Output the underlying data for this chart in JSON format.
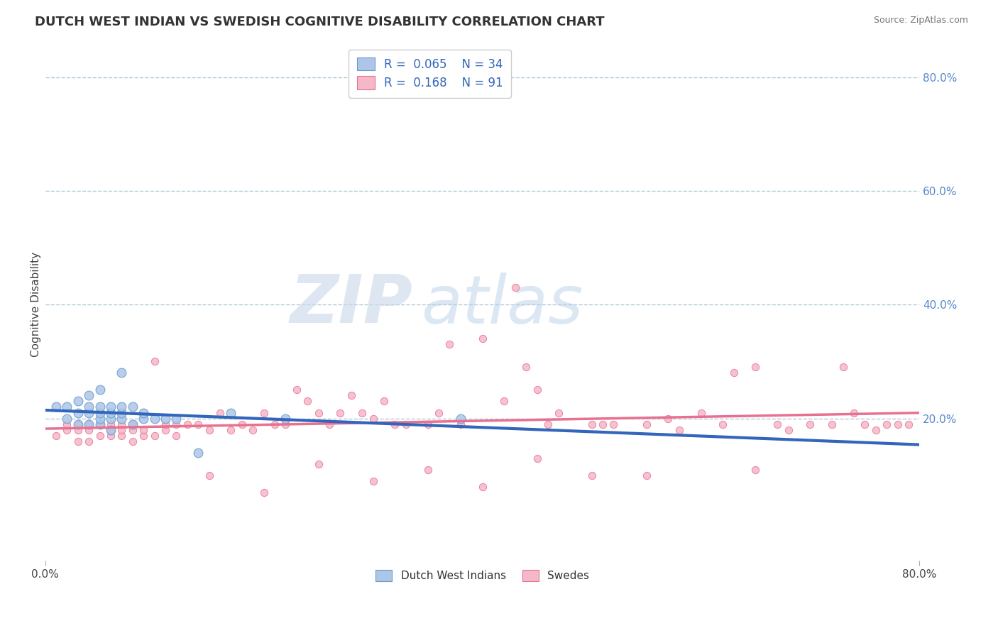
{
  "title": "DUTCH WEST INDIAN VS SWEDISH COGNITIVE DISABILITY CORRELATION CHART",
  "source_text": "Source: ZipAtlas.com",
  "ylabel": "Cognitive Disability",
  "xlim": [
    0.0,
    0.8
  ],
  "ylim": [
    -0.05,
    0.85
  ],
  "ytick_right_labels": [
    "20.0%",
    "40.0%",
    "60.0%",
    "80.0%"
  ],
  "ytick_right_values": [
    0.2,
    0.4,
    0.6,
    0.8
  ],
  "legend_labels": [
    "Dutch West Indians",
    "Swedes"
  ],
  "R1": 0.065,
  "N1": 34,
  "R2": 0.168,
  "N2": 91,
  "color_blue_fill": "#adc6e8",
  "color_blue_edge": "#6699cc",
  "color_pink_fill": "#f5b8c8",
  "color_pink_edge": "#e87090",
  "color_blue_line": "#3366bb",
  "color_pink_line": "#e87090",
  "watermark_zip": "ZIP",
  "watermark_atlas": "atlas",
  "title_fontsize": 13,
  "background_color": "#ffffff",
  "grid_color": "#b0c8d8",
  "blue_x": [
    0.01,
    0.02,
    0.02,
    0.03,
    0.03,
    0.03,
    0.04,
    0.04,
    0.04,
    0.04,
    0.05,
    0.05,
    0.05,
    0.05,
    0.05,
    0.06,
    0.06,
    0.06,
    0.06,
    0.07,
    0.07,
    0.07,
    0.07,
    0.08,
    0.08,
    0.09,
    0.09,
    0.1,
    0.11,
    0.12,
    0.14,
    0.17,
    0.22,
    0.38
  ],
  "blue_y": [
    0.22,
    0.2,
    0.22,
    0.19,
    0.21,
    0.23,
    0.19,
    0.21,
    0.22,
    0.24,
    0.19,
    0.2,
    0.21,
    0.22,
    0.25,
    0.18,
    0.2,
    0.21,
    0.22,
    0.2,
    0.21,
    0.22,
    0.28,
    0.19,
    0.22,
    0.2,
    0.21,
    0.2,
    0.2,
    0.2,
    0.14,
    0.21,
    0.2,
    0.2
  ],
  "pink_x": [
    0.01,
    0.02,
    0.02,
    0.03,
    0.03,
    0.03,
    0.04,
    0.04,
    0.04,
    0.05,
    0.05,
    0.06,
    0.06,
    0.06,
    0.07,
    0.07,
    0.07,
    0.08,
    0.08,
    0.08,
    0.09,
    0.09,
    0.1,
    0.1,
    0.11,
    0.11,
    0.12,
    0.12,
    0.13,
    0.14,
    0.15,
    0.16,
    0.17,
    0.18,
    0.19,
    0.2,
    0.21,
    0.22,
    0.23,
    0.24,
    0.25,
    0.26,
    0.27,
    0.28,
    0.29,
    0.3,
    0.31,
    0.32,
    0.33,
    0.35,
    0.36,
    0.37,
    0.38,
    0.4,
    0.42,
    0.43,
    0.44,
    0.45,
    0.46,
    0.47,
    0.5,
    0.51,
    0.52,
    0.55,
    0.57,
    0.58,
    0.6,
    0.62,
    0.63,
    0.65,
    0.67,
    0.68,
    0.7,
    0.72,
    0.73,
    0.74,
    0.75,
    0.76,
    0.77,
    0.78,
    0.79,
    0.15,
    0.25,
    0.35,
    0.45,
    0.55,
    0.65,
    0.2,
    0.3,
    0.4,
    0.5
  ],
  "pink_y": [
    0.17,
    0.18,
    0.19,
    0.16,
    0.18,
    0.19,
    0.16,
    0.18,
    0.19,
    0.17,
    0.19,
    0.17,
    0.18,
    0.19,
    0.17,
    0.18,
    0.19,
    0.16,
    0.18,
    0.19,
    0.17,
    0.18,
    0.17,
    0.3,
    0.18,
    0.19,
    0.17,
    0.19,
    0.19,
    0.19,
    0.18,
    0.21,
    0.18,
    0.19,
    0.18,
    0.21,
    0.19,
    0.19,
    0.25,
    0.23,
    0.21,
    0.19,
    0.21,
    0.24,
    0.21,
    0.2,
    0.23,
    0.19,
    0.19,
    0.19,
    0.21,
    0.33,
    0.19,
    0.34,
    0.23,
    0.43,
    0.29,
    0.25,
    0.19,
    0.21,
    0.19,
    0.19,
    0.19,
    0.19,
    0.2,
    0.18,
    0.21,
    0.19,
    0.28,
    0.29,
    0.19,
    0.18,
    0.19,
    0.19,
    0.29,
    0.21,
    0.19,
    0.18,
    0.19,
    0.19,
    0.19,
    0.1,
    0.12,
    0.11,
    0.13,
    0.1,
    0.11,
    0.07,
    0.09,
    0.08,
    0.1
  ]
}
